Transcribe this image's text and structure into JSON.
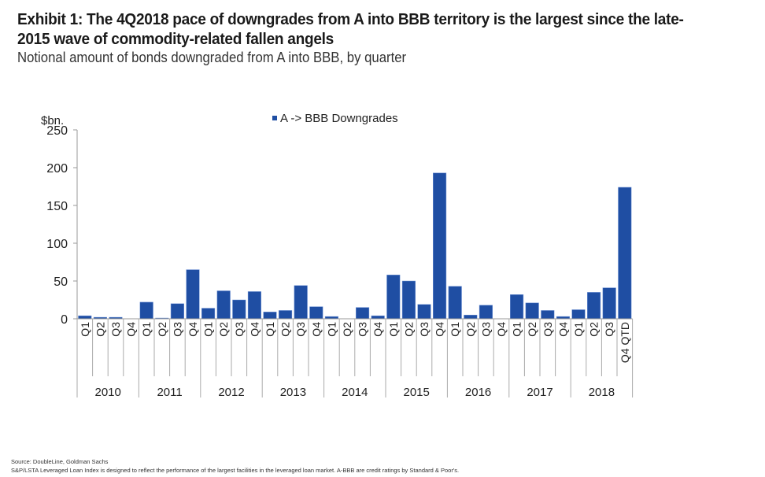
{
  "title": "Exhibit 1: The 4Q2018 pace of downgrades from A into BBB territory is the largest since the late-2015 wave of commodity-related fallen angels",
  "subtitle": "Notional amount of bonds downgraded from A into BBB, by quarter",
  "footer": {
    "source": "Source: DoubleLine, Goldman Sachs",
    "note": "S&P/LSTA Leveraged Loan Index is designed to reflect the performance of the largest facilities in the leveraged loan market. A-BBB are credit ratings by Standard & Poor's."
  },
  "colors": {
    "bar": "#1f4ea3",
    "axis": "#999999"
  },
  "chart_data": {
    "type": "bar",
    "title": "",
    "ylabel": "$bn.",
    "xlabel": "",
    "ylim": [
      0,
      250
    ],
    "yticks": [
      0,
      50,
      100,
      150,
      200,
      250
    ],
    "legend": {
      "label": "A -> BBB Downgrades",
      "position": "top-center"
    },
    "categories": [
      "Q1",
      "Q2",
      "Q3",
      "Q4",
      "Q1",
      "Q2",
      "Q3",
      "Q4",
      "Q1",
      "Q2",
      "Q3",
      "Q4",
      "Q1",
      "Q2",
      "Q3",
      "Q4",
      "Q1",
      "Q2",
      "Q3",
      "Q4",
      "Q1",
      "Q2",
      "Q3",
      "Q4",
      "Q1",
      "Q2",
      "Q3",
      "Q4",
      "Q1",
      "Q2",
      "Q3",
      "Q4",
      "Q1",
      "Q2",
      "Q3",
      "Q4 QTD"
    ],
    "years": [
      "2010",
      "2011",
      "2012",
      "2013",
      "2014",
      "2015",
      "2016",
      "2017",
      "2018"
    ],
    "series": [
      {
        "name": "A -> BBB Downgrades",
        "values": [
          4,
          2,
          2,
          0,
          22,
          1,
          20,
          65,
          14,
          37,
          25,
          36,
          9,
          11,
          44,
          16,
          3,
          0,
          15,
          4,
          58,
          50,
          19,
          193,
          43,
          5,
          18,
          0,
          32,
          21,
          11,
          3,
          12,
          35,
          41,
          174
        ]
      }
    ]
  }
}
